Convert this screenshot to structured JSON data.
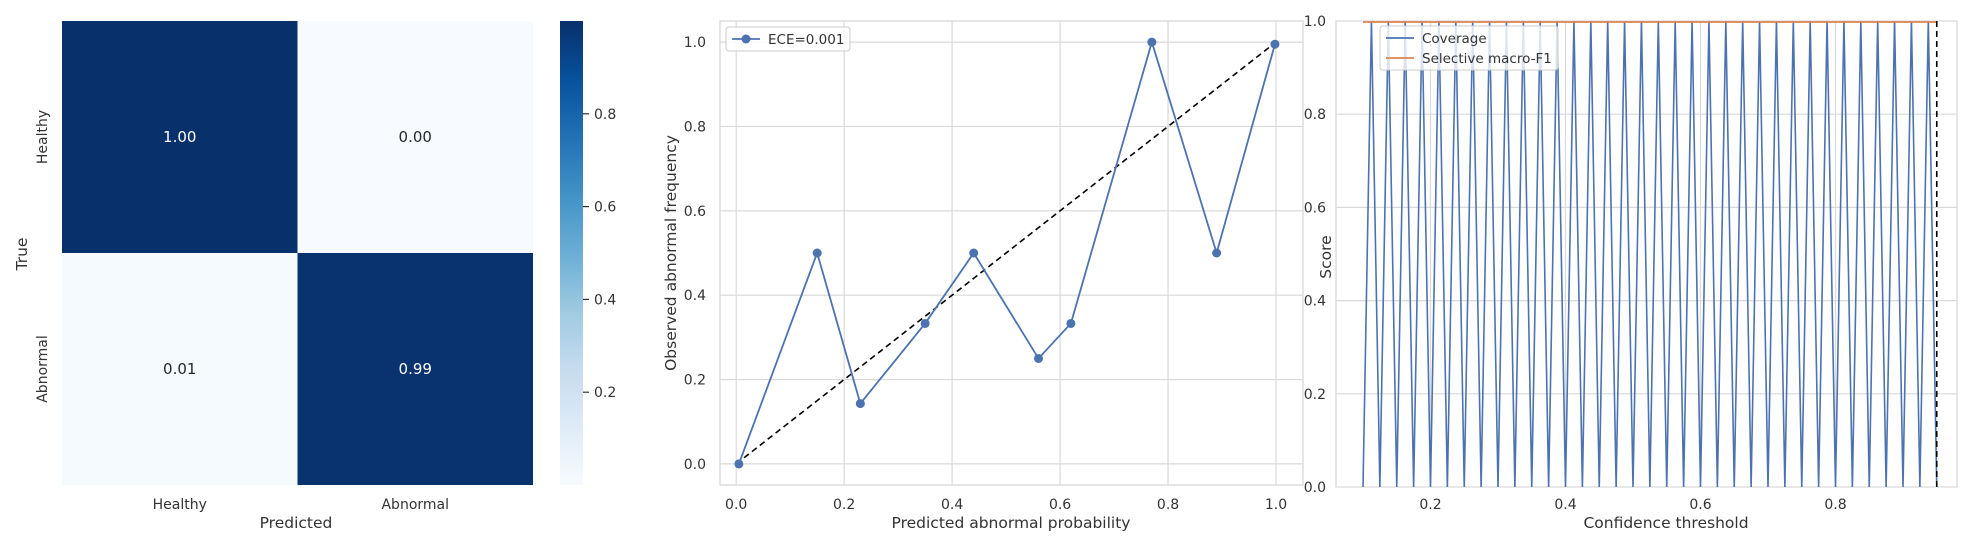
{
  "chart_data": [
    {
      "type": "heatmap",
      "xlabel": "Predicted",
      "ylabel": "True",
      "x_categories": [
        "Healthy",
        "Abnormal"
      ],
      "y_categories": [
        "Healthy",
        "Abnormal"
      ],
      "values": [
        [
          1.0,
          0.0
        ],
        [
          0.01,
          0.99
        ]
      ],
      "cell_labels": [
        [
          "1.00",
          "0.00"
        ],
        [
          "0.01",
          "0.99"
        ]
      ],
      "colormap": "Blues",
      "colorbar": {
        "range": [
          0,
          1
        ],
        "ticks": [
          0.2,
          0.4,
          0.6,
          0.8
        ],
        "tick_labels": [
          "0.2",
          "0.4",
          "0.6",
          "0.8"
        ]
      }
    },
    {
      "type": "line",
      "xlabel": "Predicted abnormal probability",
      "ylabel": "Observed abnormal frequency",
      "xlim": [
        -0.03,
        1.05
      ],
      "ylim": [
        -0.05,
        1.05
      ],
      "xticks": [
        0.0,
        0.2,
        0.4,
        0.6,
        0.8,
        1.0
      ],
      "xtick_labels": [
        "0.0",
        "0.2",
        "0.4",
        "0.6",
        "0.8",
        "1.0"
      ],
      "yticks": [
        0.0,
        0.2,
        0.4,
        0.6,
        0.8,
        1.0
      ],
      "ytick_labels": [
        "0.0",
        "0.2",
        "0.4",
        "0.6",
        "0.8",
        "1.0"
      ],
      "grid": true,
      "legend": "top-left",
      "series": [
        {
          "name": "ECE=0.001",
          "marker": "circle",
          "color": "#4c72b0",
          "x": [
            0.005,
            0.15,
            0.23,
            0.35,
            0.44,
            0.56,
            0.62,
            0.77,
            0.89,
            0.998
          ],
          "y": [
            0.0,
            0.5,
            0.143,
            0.333,
            0.5,
            0.25,
            0.333,
            1.0,
            0.5,
            0.995
          ]
        }
      ],
      "reference_line": {
        "style": "dashed",
        "color": "#000000",
        "x": [
          0.0,
          1.0
        ],
        "y": [
          0.0,
          1.0
        ]
      }
    },
    {
      "type": "line",
      "xlabel": "Confidence threshold",
      "ylabel": "Score",
      "xlim": [
        0.06,
        0.98
      ],
      "ylim": [
        0.0,
        1.0
      ],
      "xticks": [
        0.2,
        0.4,
        0.6,
        0.8
      ],
      "xtick_labels": [
        "0.2",
        "0.4",
        "0.6",
        "0.8"
      ],
      "yticks": [
        0.0,
        0.2,
        0.4,
        0.6,
        0.8,
        1.0
      ],
      "ytick_labels": [
        "0.0",
        "0.2",
        "0.4",
        "0.6",
        "0.8",
        "1.0"
      ],
      "grid": true,
      "legend": "top-left",
      "threshold_line": {
        "x": 0.95,
        "style": "dashed",
        "color": "#000000"
      },
      "series": [
        {
          "name": "Coverage",
          "color": "#4c72b0",
          "x": [
            0.1,
            0.1125,
            0.125,
            0.1375,
            0.15,
            0.1625,
            0.175,
            0.1875,
            0.2,
            0.2125,
            0.225,
            0.2375,
            0.25,
            0.2625,
            0.275,
            0.2875,
            0.3,
            0.3125,
            0.325,
            0.3375,
            0.35,
            0.3625,
            0.375,
            0.3875,
            0.4,
            0.4125,
            0.425,
            0.4375,
            0.45,
            0.4625,
            0.475,
            0.4875,
            0.5,
            0.5125,
            0.525,
            0.5375,
            0.55,
            0.5625,
            0.575,
            0.5875,
            0.6,
            0.6125,
            0.625,
            0.6375,
            0.65,
            0.6625,
            0.675,
            0.6875,
            0.7,
            0.7125,
            0.725,
            0.7375,
            0.75,
            0.7625,
            0.775,
            0.7875,
            0.8,
            0.8125,
            0.825,
            0.8375,
            0.85,
            0.8625,
            0.875,
            0.8875,
            0.9,
            0.9125,
            0.925,
            0.9375,
            0.95
          ],
          "y": [
            0,
            1,
            0,
            1,
            0,
            1,
            0,
            1,
            0,
            1,
            0,
            1,
            0,
            1,
            0,
            1,
            0,
            1,
            0,
            1,
            0,
            1,
            0,
            1,
            0,
            1,
            0,
            1,
            0,
            1,
            0,
            1,
            0,
            1,
            0,
            1,
            0,
            1,
            0,
            1,
            0,
            1,
            0,
            1,
            0,
            1,
            0,
            1,
            0,
            1,
            0,
            1,
            0,
            1,
            0,
            1,
            0,
            1,
            0,
            1,
            0,
            1,
            0,
            1,
            0,
            1,
            0,
            1,
            0
          ]
        },
        {
          "name": "Selective macro-F1",
          "color": "#dd8452",
          "x": [
            0.1,
            0.95
          ],
          "y": [
            1.0,
            1.0
          ]
        }
      ]
    }
  ]
}
